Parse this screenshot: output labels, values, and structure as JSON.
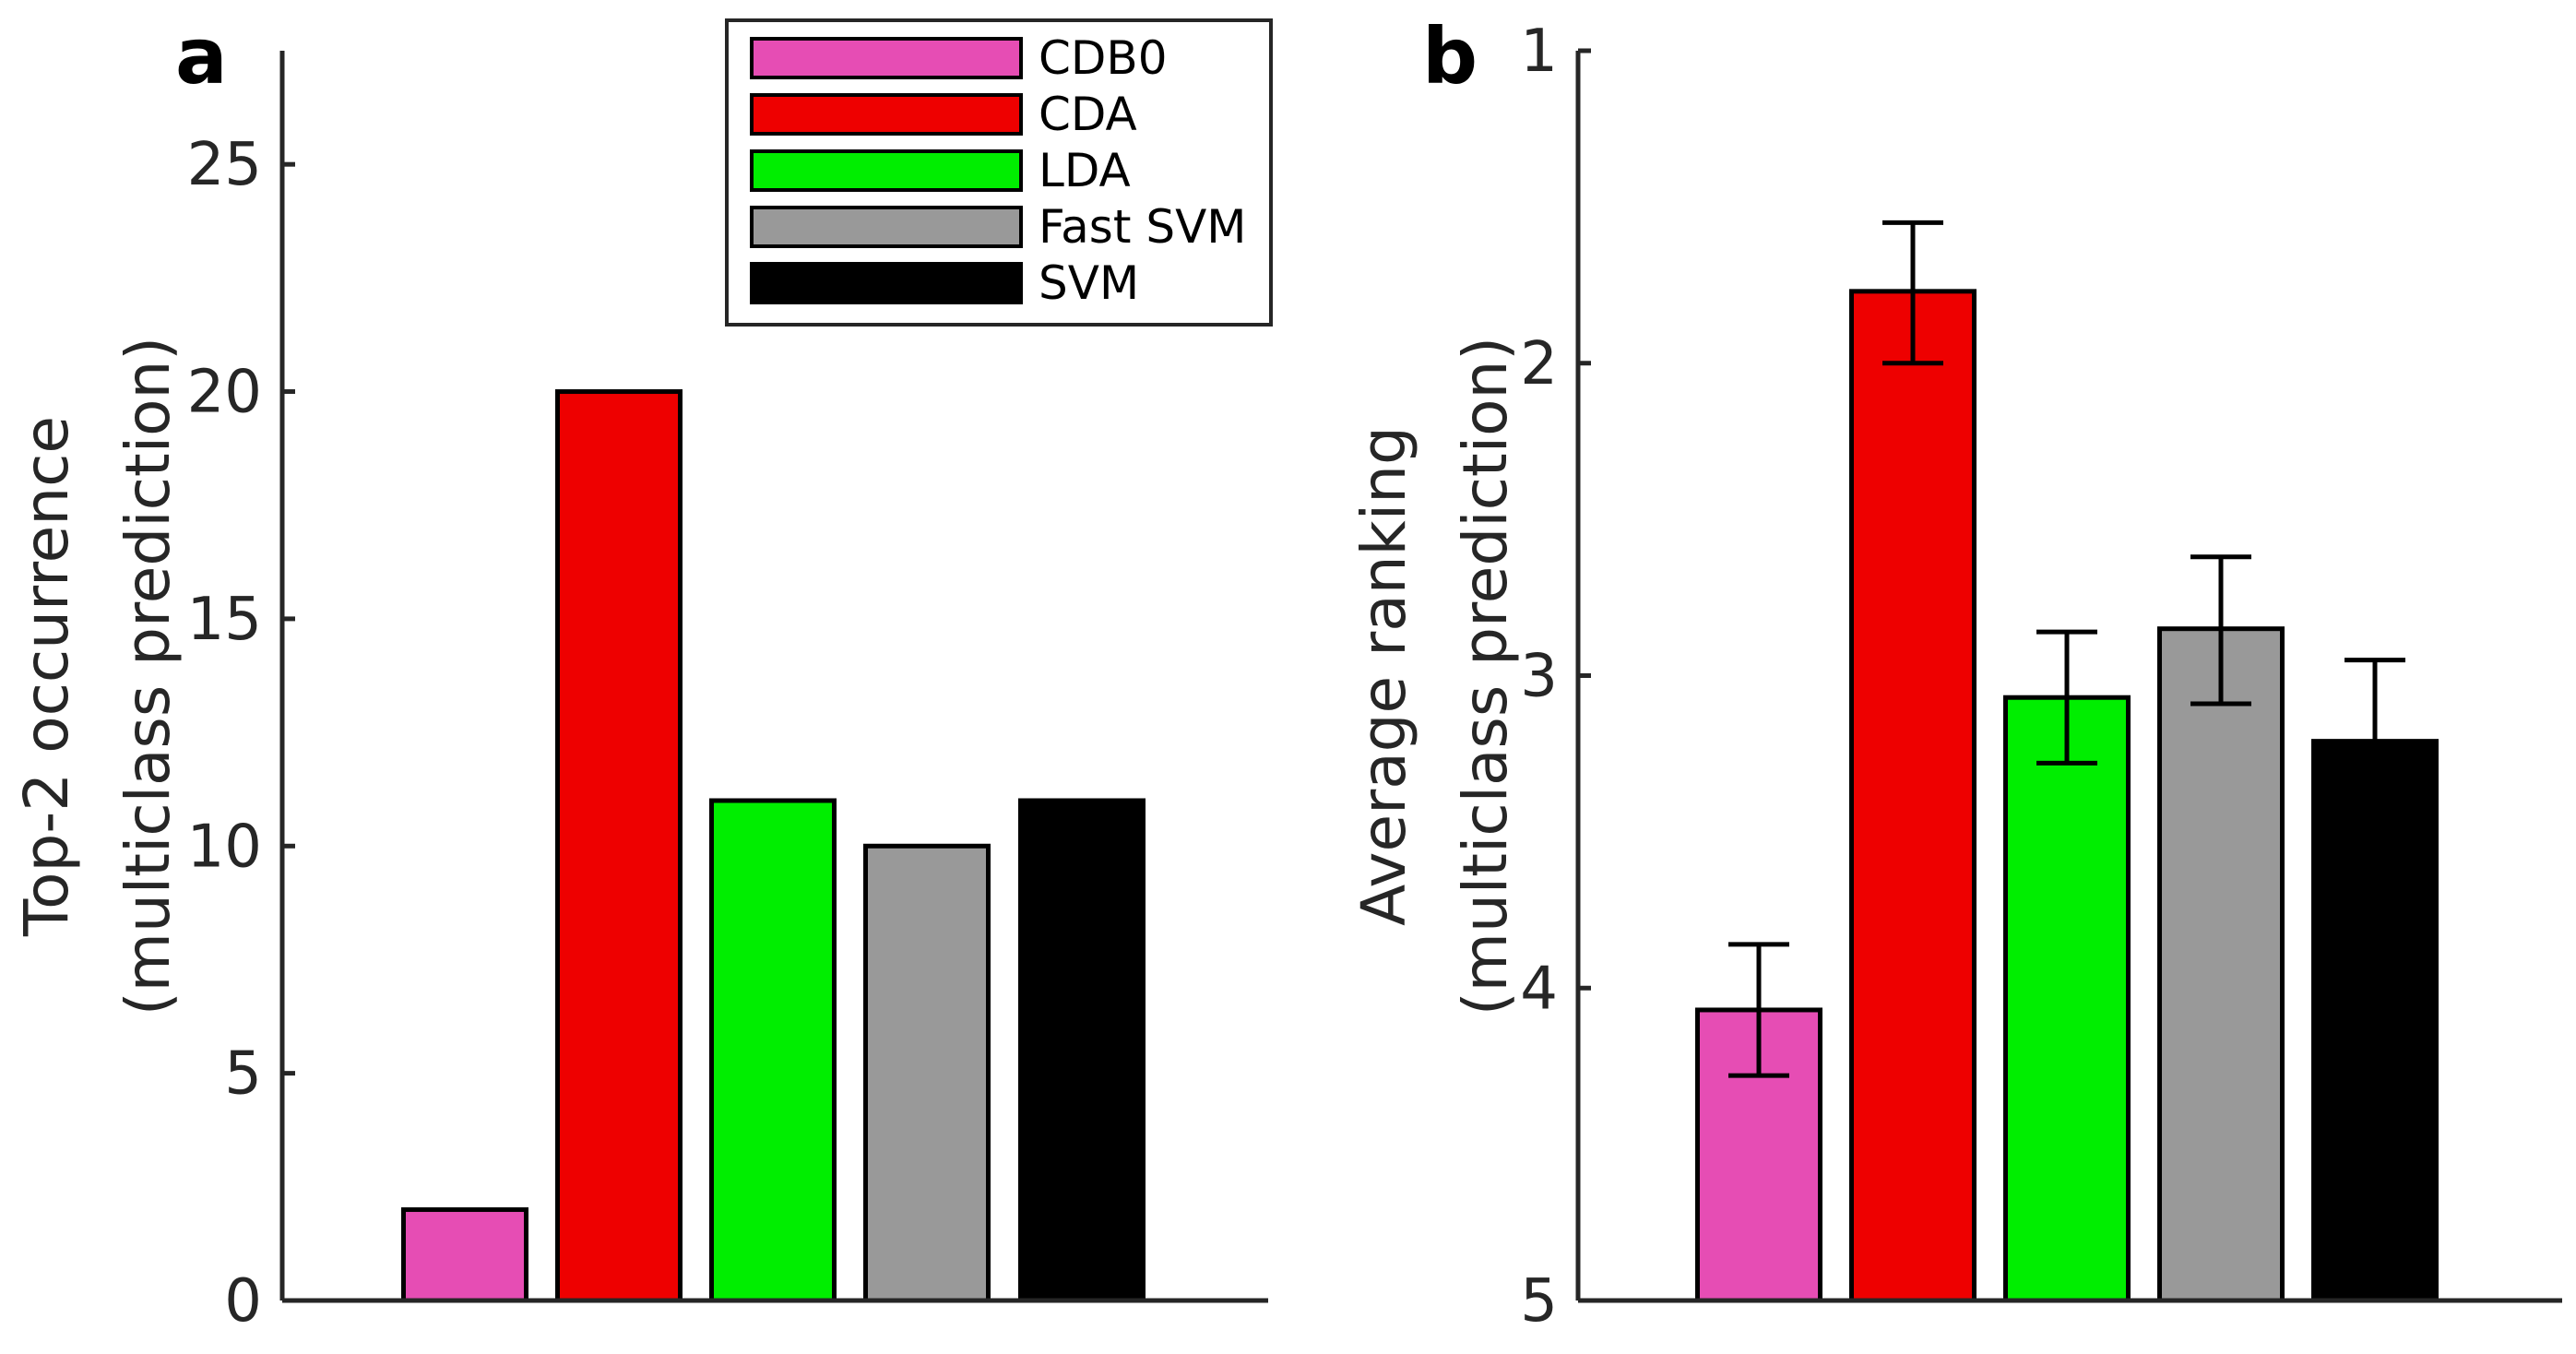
{
  "chart_data": [
    {
      "panel": "a",
      "type": "bar",
      "title": "",
      "ylabel_lines": [
        "Top-2 occurrence",
        "(multiclass prediction)"
      ],
      "xlabel": "",
      "categories": [
        "CDB0",
        "CDA",
        "LDA",
        "Fast SVM",
        "SVM"
      ],
      "values": [
        2,
        20,
        11,
        10,
        11
      ],
      "colors": [
        "#e64db4",
        "#ee0000",
        "#00ee00",
        "#999999",
        "#000000"
      ],
      "ylim": [
        0,
        27.5
      ],
      "yticks": [
        0,
        5,
        10,
        15,
        20,
        25
      ],
      "ytick_labels": [
        "0",
        "5",
        "10",
        "15",
        "20",
        "25"
      ],
      "grid": false,
      "legend": {
        "placement": "top-right",
        "entries": [
          "CDB0",
          "CDA",
          "LDA",
          "Fast SVM",
          "SVM"
        ]
      }
    },
    {
      "panel": "b",
      "type": "bar",
      "title": "",
      "ylabel_lines": [
        "Average ranking",
        "(multiclass prediction)"
      ],
      "xlabel": "",
      "categories": [
        "CDB0",
        "CDA",
        "LDA",
        "Fast SVM",
        "SVM"
      ],
      "values": [
        4.07,
        1.77,
        3.07,
        2.85,
        3.21
      ],
      "error_low": [
        4.28,
        2.0,
        3.28,
        3.09,
        3.43
      ],
      "error_high": [
        3.86,
        1.55,
        2.86,
        2.62,
        2.95
      ],
      "colors": [
        "#e64db4",
        "#ee0000",
        "#00ee00",
        "#999999",
        "#000000"
      ],
      "ylim": [
        1,
        5
      ],
      "y_reversed": true,
      "yticks": [
        1,
        2,
        3,
        4,
        5
      ],
      "ytick_labels": [
        "1",
        "2",
        "3",
        "4",
        "5"
      ],
      "grid": false
    }
  ]
}
